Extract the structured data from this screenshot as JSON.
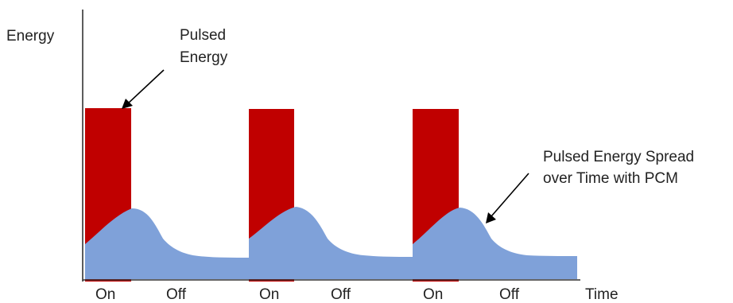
{
  "labels": {
    "y_axis": "Energy",
    "x_axis": "Time",
    "pulsed_energy_line1": "Pulsed",
    "pulsed_energy_line2": "Energy",
    "spread_line1": "Pulsed Energy Spread",
    "spread_line2": "over Time with PCM"
  },
  "phases": [
    {
      "on": "On",
      "off": "Off"
    },
    {
      "on": "On",
      "off": "Off"
    },
    {
      "on": "On",
      "off": "Off"
    }
  ],
  "colors": {
    "pulse": "#c00000",
    "spread": "#7fa1d9",
    "overlap": "#6f4a8e",
    "axis": "#333333",
    "arrow": "#000000"
  }
}
